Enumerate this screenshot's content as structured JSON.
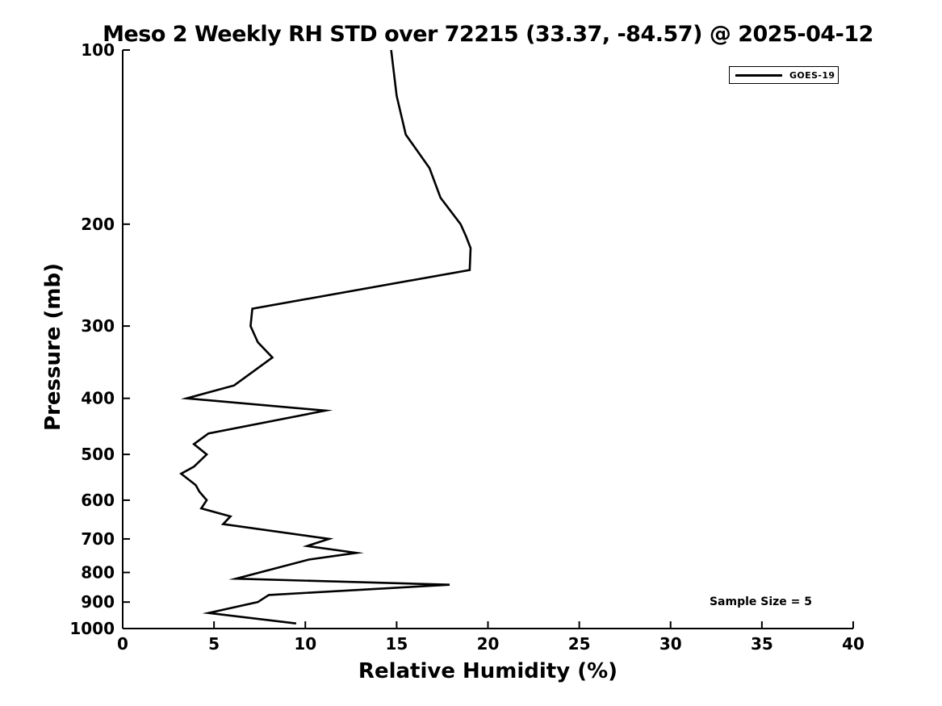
{
  "chart_data": {
    "type": "line",
    "title": "Meso 2 Weekly RH STD over 72215 (33.37, -84.57) @ 2025-04-12",
    "xlabel": "Relative Humidity (%)",
    "ylabel": "Pressure (mb)",
    "xlim": [
      0,
      40
    ],
    "ylim": [
      100,
      1000
    ],
    "y_scale": "log",
    "y_inverted": true,
    "grid": false,
    "x_ticks": [
      0,
      5,
      10,
      15,
      20,
      25,
      30,
      35,
      40
    ],
    "y_ticks": [
      100,
      200,
      300,
      400,
      500,
      600,
      700,
      800,
      900,
      1000
    ],
    "legend": {
      "position": "top-right",
      "entries": [
        {
          "label": "GOES-19",
          "color": "#000000"
        }
      ]
    },
    "annotation": "Sample Size = 5",
    "colors": {
      "line": "#000000",
      "background": "#ffffff",
      "axis": "#000000"
    },
    "series": [
      {
        "name": "GOES-19",
        "color": "#000000",
        "pressure_mb": [
          100,
          120,
          140,
          160,
          180,
          200,
          210,
          220,
          240,
          280,
          300,
          320,
          340,
          380,
          400,
          420,
          460,
          480,
          500,
          525,
          540,
          565,
          580,
          600,
          620,
          640,
          660,
          700,
          720,
          740,
          760,
          820,
          840,
          875,
          900,
          940,
          980
        ],
        "rh_std": [
          14.7,
          15.0,
          15.5,
          16.8,
          17.4,
          18.5,
          18.8,
          19.05,
          19.0,
          7.1,
          7.0,
          7.4,
          8.2,
          6.1,
          3.5,
          11.1,
          4.7,
          3.9,
          4.6,
          3.9,
          3.2,
          4.0,
          4.2,
          4.6,
          4.3,
          5.9,
          5.5,
          11.3,
          10.1,
          12.8,
          10.2,
          6.2,
          17.9,
          8.0,
          7.4,
          4.7,
          9.5
        ]
      }
    ]
  }
}
